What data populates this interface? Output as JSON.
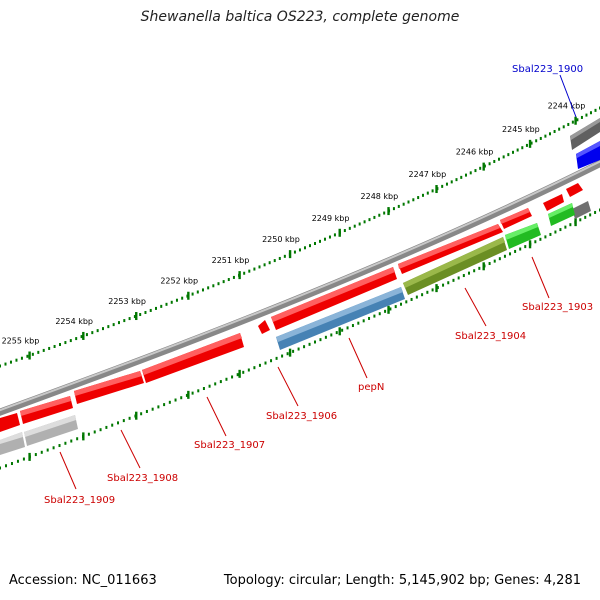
{
  "title": "Shewanella baltica OS223, complete genome",
  "footer": {
    "accession": "Accession: NC_011663",
    "summary": "Topology: circular; Length: 5,145,902 bp; Genes: 4,281"
  },
  "ruler": {
    "ticks": [
      "2244 kbp",
      "2245 kbp",
      "2246 kbp",
      "2247 kbp",
      "2248 kbp",
      "2249 kbp",
      "2250 kbp",
      "2251 kbp",
      "2252 kbp",
      "2253 kbp",
      "2254 kbp",
      "2255 kbp"
    ]
  },
  "gene_labels": {
    "g1900": "Sbal223_1900",
    "g1903": "Sbal223_1903",
    "g1904": "Sbal223_1904",
    "pepN": "pepN",
    "g1906": "Sbal223_1906",
    "g1907": "Sbal223_1907",
    "g1908": "Sbal223_1908",
    "g1909": "Sbal223_1909"
  },
  "colors": {
    "forward": "#ff0000",
    "blue_gene": "#0000ff",
    "pepN": "#4682b4",
    "g1904": "#6b8e23",
    "g1903": "#33cc33",
    "grey_gene": "#808080",
    "light_grey_gene": "#c0c0c0",
    "tick_green": "#007700",
    "backbone": "#808080",
    "label_red": "#cc0000",
    "label_blue": "#0000cc"
  }
}
